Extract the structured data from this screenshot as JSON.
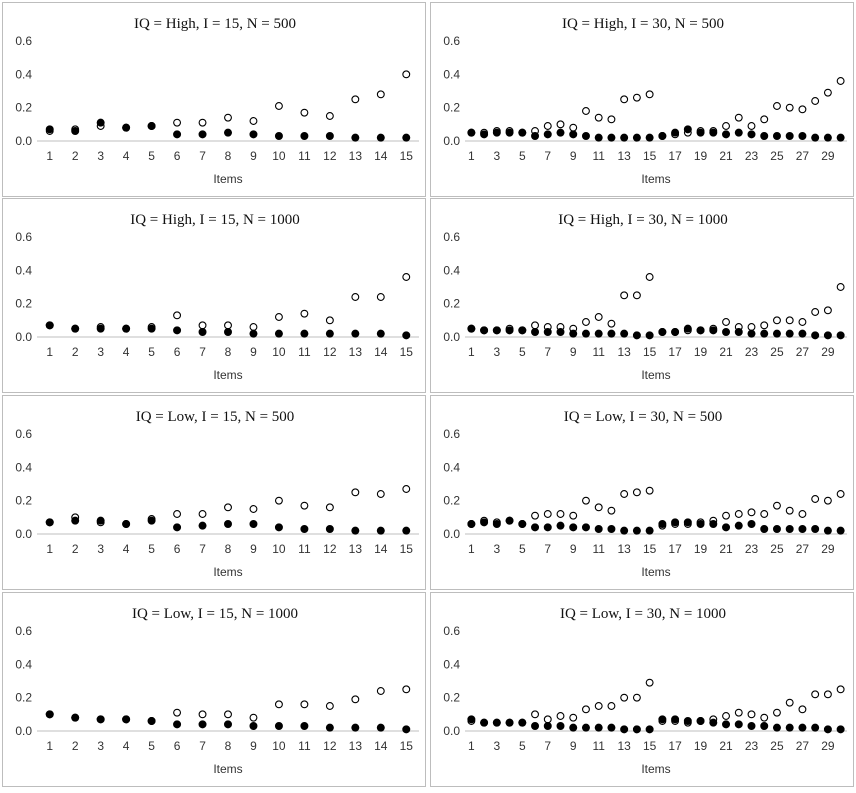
{
  "chart_data": [
    {
      "type": "scatter",
      "title": "IQ = High, I = 15, N = 500",
      "xlabel": "Items",
      "ylabel": "",
      "ylim": [
        0,
        0.6
      ],
      "yticks": [
        "0.0",
        "0.2",
        "0.4",
        "0.6"
      ],
      "xticks": [
        1,
        2,
        3,
        4,
        5,
        6,
        7,
        8,
        9,
        10,
        11,
        12,
        13,
        14,
        15
      ],
      "series": [
        {
          "name": "open",
          "marker": "open-circle",
          "x": [
            1,
            2,
            3,
            4,
            5,
            6,
            7,
            8,
            9,
            10,
            11,
            12,
            13,
            14,
            15
          ],
          "values": [
            0.06,
            0.07,
            0.09,
            0.08,
            0.09,
            0.11,
            0.11,
            0.14,
            0.12,
            0.21,
            0.17,
            0.15,
            0.25,
            0.28,
            0.4
          ]
        },
        {
          "name": "filled",
          "marker": "filled-circle",
          "x": [
            1,
            2,
            3,
            4,
            5,
            6,
            7,
            8,
            9,
            10,
            11,
            12,
            13,
            14,
            15
          ],
          "values": [
            0.07,
            0.06,
            0.11,
            0.08,
            0.09,
            0.04,
            0.04,
            0.05,
            0.04,
            0.03,
            0.03,
            0.03,
            0.02,
            0.02,
            0.02
          ]
        }
      ]
    },
    {
      "type": "scatter",
      "title": "IQ = High, I = 30, N = 500",
      "xlabel": "Items",
      "ylabel": "",
      "ylim": [
        0,
        0.6
      ],
      "yticks": [
        "0.0",
        "0.2",
        "0.4",
        "0.6"
      ],
      "xticks": [
        1,
        3,
        5,
        7,
        9,
        11,
        13,
        15,
        17,
        19,
        21,
        23,
        25,
        27,
        29
      ],
      "series": [
        {
          "name": "open",
          "marker": "open-circle",
          "x": [
            1,
            2,
            3,
            4,
            5,
            6,
            7,
            8,
            9,
            10,
            11,
            12,
            13,
            14,
            15,
            16,
            17,
            18,
            19,
            20,
            21,
            22,
            23,
            24,
            25,
            26,
            27,
            28,
            29,
            30
          ],
          "values": [
            0.05,
            0.05,
            0.06,
            0.06,
            0.05,
            0.06,
            0.09,
            0.1,
            0.08,
            0.18,
            0.14,
            0.13,
            0.25,
            0.26,
            0.28,
            0.03,
            0.04,
            0.05,
            0.06,
            0.06,
            0.09,
            0.14,
            0.09,
            0.13,
            0.21,
            0.2,
            0.19,
            0.24,
            0.29,
            0.36
          ]
        },
        {
          "name": "filled",
          "marker": "filled-circle",
          "x": [
            1,
            2,
            3,
            4,
            5,
            6,
            7,
            8,
            9,
            10,
            11,
            12,
            13,
            14,
            15,
            16,
            17,
            18,
            19,
            20,
            21,
            22,
            23,
            24,
            25,
            26,
            27,
            28,
            29,
            30
          ],
          "values": [
            0.05,
            0.04,
            0.05,
            0.05,
            0.05,
            0.03,
            0.04,
            0.05,
            0.04,
            0.03,
            0.02,
            0.02,
            0.02,
            0.02,
            0.02,
            0.03,
            0.05,
            0.07,
            0.05,
            0.05,
            0.04,
            0.05,
            0.04,
            0.03,
            0.03,
            0.03,
            0.03,
            0.02,
            0.02,
            0.02
          ]
        }
      ]
    },
    {
      "type": "scatter",
      "title": "IQ = High, I = 15, N = 1000",
      "xlabel": "Items",
      "ylabel": "",
      "ylim": [
        0,
        0.6
      ],
      "yticks": [
        "0.0",
        "0.2",
        "0.4",
        "0.6"
      ],
      "xticks": [
        1,
        2,
        3,
        4,
        5,
        6,
        7,
        8,
        9,
        10,
        11,
        12,
        13,
        14,
        15
      ],
      "series": [
        {
          "name": "open",
          "marker": "open-circle",
          "x": [
            1,
            2,
            3,
            4,
            5,
            6,
            7,
            8,
            9,
            10,
            11,
            12,
            13,
            14,
            15
          ],
          "values": [
            0.07,
            0.05,
            0.06,
            0.05,
            0.06,
            0.13,
            0.07,
            0.07,
            0.06,
            0.12,
            0.14,
            0.1,
            0.24,
            0.24,
            0.36
          ]
        },
        {
          "name": "filled",
          "marker": "filled-circle",
          "x": [
            1,
            2,
            3,
            4,
            5,
            6,
            7,
            8,
            9,
            10,
            11,
            12,
            13,
            14,
            15
          ],
          "values": [
            0.07,
            0.05,
            0.05,
            0.05,
            0.05,
            0.04,
            0.03,
            0.03,
            0.02,
            0.02,
            0.02,
            0.02,
            0.02,
            0.02,
            0.01
          ]
        }
      ]
    },
    {
      "type": "scatter",
      "title": "IQ = High, I = 30, N = 1000",
      "xlabel": "Items",
      "ylabel": "",
      "ylim": [
        0,
        0.6
      ],
      "yticks": [
        "0.0",
        "0.2",
        "0.4",
        "0.6"
      ],
      "xticks": [
        1,
        3,
        5,
        7,
        9,
        11,
        13,
        15,
        17,
        19,
        21,
        23,
        25,
        27,
        29
      ],
      "series": [
        {
          "name": "open",
          "marker": "open-circle",
          "x": [
            1,
            2,
            3,
            4,
            5,
            6,
            7,
            8,
            9,
            10,
            11,
            12,
            13,
            14,
            15,
            16,
            17,
            18,
            19,
            20,
            21,
            22,
            23,
            24,
            25,
            26,
            27,
            28,
            29,
            30
          ],
          "values": [
            0.05,
            0.04,
            0.04,
            0.05,
            0.04,
            0.07,
            0.06,
            0.06,
            0.05,
            0.09,
            0.12,
            0.08,
            0.25,
            0.25,
            0.36,
            0.03,
            0.03,
            0.04,
            0.04,
            0.05,
            0.09,
            0.06,
            0.06,
            0.07,
            0.1,
            0.1,
            0.09,
            0.15,
            0.16,
            0.3
          ]
        },
        {
          "name": "filled",
          "marker": "filled-circle",
          "x": [
            1,
            2,
            3,
            4,
            5,
            6,
            7,
            8,
            9,
            10,
            11,
            12,
            13,
            14,
            15,
            16,
            17,
            18,
            19,
            20,
            21,
            22,
            23,
            24,
            25,
            26,
            27,
            28,
            29,
            30
          ],
          "values": [
            0.05,
            0.04,
            0.04,
            0.04,
            0.04,
            0.03,
            0.03,
            0.03,
            0.02,
            0.02,
            0.02,
            0.02,
            0.02,
            0.01,
            0.01,
            0.03,
            0.03,
            0.05,
            0.04,
            0.04,
            0.03,
            0.03,
            0.02,
            0.02,
            0.02,
            0.02,
            0.02,
            0.01,
            0.01,
            0.01
          ]
        }
      ]
    },
    {
      "type": "scatter",
      "title": "IQ = Low, I = 15, N = 500",
      "xlabel": "Items",
      "ylabel": "",
      "ylim": [
        0,
        0.6
      ],
      "yticks": [
        "0.0",
        "0.2",
        "0.4",
        "0.6"
      ],
      "xticks": [
        1,
        2,
        3,
        4,
        5,
        6,
        7,
        8,
        9,
        10,
        11,
        12,
        13,
        14,
        15
      ],
      "series": [
        {
          "name": "open",
          "marker": "open-circle",
          "x": [
            1,
            2,
            3,
            4,
            5,
            6,
            7,
            8,
            9,
            10,
            11,
            12,
            13,
            14,
            15
          ],
          "values": [
            0.07,
            0.1,
            0.07,
            0.06,
            0.09,
            0.12,
            0.12,
            0.16,
            0.15,
            0.2,
            0.17,
            0.16,
            0.25,
            0.24,
            0.27
          ]
        },
        {
          "name": "filled",
          "marker": "filled-circle",
          "x": [
            1,
            2,
            3,
            4,
            5,
            6,
            7,
            8,
            9,
            10,
            11,
            12,
            13,
            14,
            15
          ],
          "values": [
            0.07,
            0.08,
            0.08,
            0.06,
            0.08,
            0.04,
            0.05,
            0.06,
            0.06,
            0.04,
            0.03,
            0.03,
            0.02,
            0.02,
            0.02
          ]
        }
      ]
    },
    {
      "type": "scatter",
      "title": "IQ = Low, I = 30, N = 500",
      "xlabel": "Items",
      "ylabel": "",
      "ylim": [
        0,
        0.6
      ],
      "yticks": [
        "0.0",
        "0.2",
        "0.4",
        "0.6"
      ],
      "xticks": [
        1,
        3,
        5,
        7,
        9,
        11,
        13,
        15,
        17,
        19,
        21,
        23,
        25,
        27,
        29
      ],
      "series": [
        {
          "name": "open",
          "marker": "open-circle",
          "x": [
            1,
            2,
            3,
            4,
            5,
            6,
            7,
            8,
            9,
            10,
            11,
            12,
            13,
            14,
            15,
            16,
            17,
            18,
            19,
            20,
            21,
            22,
            23,
            24,
            25,
            26,
            27,
            28,
            29,
            30
          ],
          "values": [
            0.06,
            0.08,
            0.07,
            0.08,
            0.06,
            0.11,
            0.12,
            0.12,
            0.11,
            0.2,
            0.16,
            0.14,
            0.24,
            0.25,
            0.26,
            0.05,
            0.06,
            0.06,
            0.07,
            0.08,
            0.11,
            0.12,
            0.13,
            0.12,
            0.17,
            0.14,
            0.12,
            0.21,
            0.2,
            0.24
          ]
        },
        {
          "name": "filled",
          "marker": "filled-circle",
          "x": [
            1,
            2,
            3,
            4,
            5,
            6,
            7,
            8,
            9,
            10,
            11,
            12,
            13,
            14,
            15,
            16,
            17,
            18,
            19,
            20,
            21,
            22,
            23,
            24,
            25,
            26,
            27,
            28,
            29,
            30
          ],
          "values": [
            0.06,
            0.07,
            0.06,
            0.08,
            0.06,
            0.04,
            0.04,
            0.05,
            0.04,
            0.04,
            0.03,
            0.03,
            0.02,
            0.02,
            0.02,
            0.06,
            0.07,
            0.07,
            0.06,
            0.06,
            0.04,
            0.05,
            0.06,
            0.03,
            0.03,
            0.03,
            0.03,
            0.03,
            0.02,
            0.02
          ]
        }
      ]
    },
    {
      "type": "scatter",
      "title": "IQ = Low, I = 15, N = 1000",
      "xlabel": "Items",
      "ylabel": "",
      "ylim": [
        0,
        0.6
      ],
      "yticks": [
        "0.0",
        "0.2",
        "0.4",
        "0.6"
      ],
      "xticks": [
        1,
        2,
        3,
        4,
        5,
        6,
        7,
        8,
        9,
        10,
        11,
        12,
        13,
        14,
        15
      ],
      "series": [
        {
          "name": "open",
          "marker": "open-circle",
          "x": [
            1,
            2,
            3,
            4,
            5,
            6,
            7,
            8,
            9,
            10,
            11,
            12,
            13,
            14,
            15
          ],
          "values": [
            0.1,
            0.08,
            0.07,
            0.07,
            0.06,
            0.11,
            0.1,
            0.1,
            0.08,
            0.16,
            0.16,
            0.15,
            0.19,
            0.24,
            0.25
          ]
        },
        {
          "name": "filled",
          "marker": "filled-circle",
          "x": [
            1,
            2,
            3,
            4,
            5,
            6,
            7,
            8,
            9,
            10,
            11,
            12,
            13,
            14,
            15
          ],
          "values": [
            0.1,
            0.08,
            0.07,
            0.07,
            0.06,
            0.04,
            0.04,
            0.04,
            0.03,
            0.03,
            0.03,
            0.02,
            0.02,
            0.02,
            0.01
          ]
        }
      ]
    },
    {
      "type": "scatter",
      "title": "IQ = Low, I = 30, N = 1000",
      "xlabel": "Items",
      "ylabel": "",
      "ylim": [
        0,
        0.6
      ],
      "yticks": [
        "0.0",
        "0.2",
        "0.4",
        "0.6"
      ],
      "xticks": [
        1,
        3,
        5,
        7,
        9,
        11,
        13,
        15,
        17,
        19,
        21,
        23,
        25,
        27,
        29
      ],
      "series": [
        {
          "name": "open",
          "marker": "open-circle",
          "x": [
            1,
            2,
            3,
            4,
            5,
            6,
            7,
            8,
            9,
            10,
            11,
            12,
            13,
            14,
            15,
            16,
            17,
            18,
            19,
            20,
            21,
            22,
            23,
            24,
            25,
            26,
            27,
            28,
            29,
            30
          ],
          "values": [
            0.06,
            0.05,
            0.05,
            0.05,
            0.05,
            0.1,
            0.07,
            0.09,
            0.08,
            0.13,
            0.15,
            0.15,
            0.2,
            0.2,
            0.29,
            0.06,
            0.06,
            0.05,
            0.06,
            0.07,
            0.09,
            0.11,
            0.1,
            0.08,
            0.11,
            0.17,
            0.13,
            0.22,
            0.22,
            0.25
          ]
        },
        {
          "name": "filled",
          "marker": "filled-circle",
          "x": [
            1,
            2,
            3,
            4,
            5,
            6,
            7,
            8,
            9,
            10,
            11,
            12,
            13,
            14,
            15,
            16,
            17,
            18,
            19,
            20,
            21,
            22,
            23,
            24,
            25,
            26,
            27,
            28,
            29,
            30
          ],
          "values": [
            0.07,
            0.05,
            0.05,
            0.05,
            0.05,
            0.03,
            0.03,
            0.03,
            0.02,
            0.02,
            0.02,
            0.02,
            0.01,
            0.01,
            0.01,
            0.07,
            0.07,
            0.06,
            0.06,
            0.05,
            0.04,
            0.04,
            0.03,
            0.03,
            0.02,
            0.02,
            0.02,
            0.02,
            0.01,
            0.01
          ]
        }
      ]
    }
  ],
  "style": {
    "marker_color": "#000000",
    "axis_color": "#bfbfbf",
    "text_color": "#333333",
    "border_color": "#bdbdbd"
  }
}
